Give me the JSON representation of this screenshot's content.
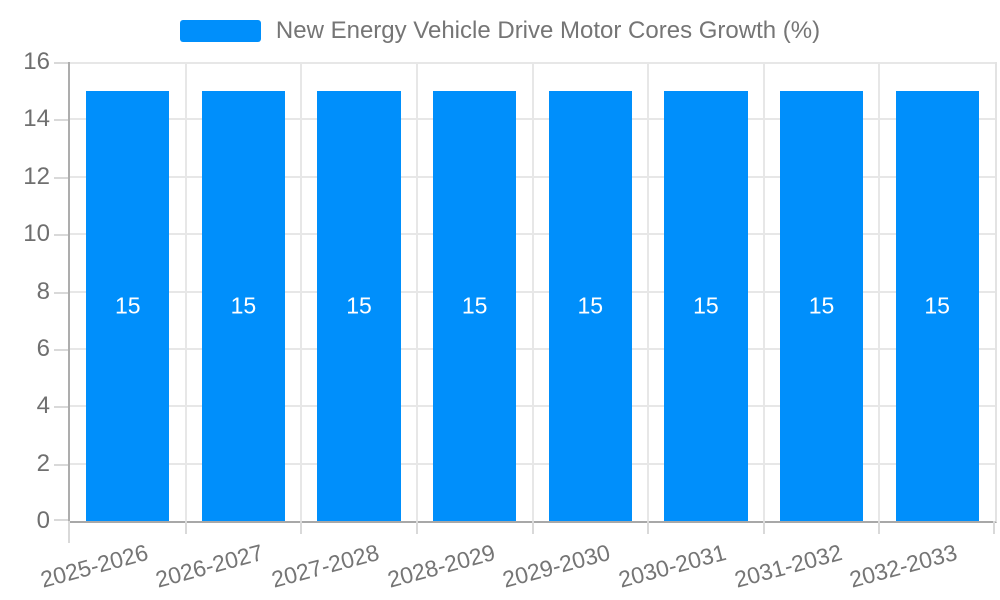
{
  "chart_data": {
    "type": "bar",
    "title": "New Energy Vehicle Drive Motor Cores Growth (%)",
    "legend": {
      "position": "top",
      "entries": [
        "New Energy Vehicle Drive Motor Cores Growth (%)"
      ]
    },
    "categories": [
      "2025-2026",
      "2026-2027",
      "2027-2028",
      "2028-2029",
      "2029-2030",
      "2030-2031",
      "2031-2032",
      "2032-2033"
    ],
    "values": [
      15,
      15,
      15,
      15,
      15,
      15,
      15,
      15
    ],
    "bar_value_labels": [
      "15",
      "15",
      "15",
      "15",
      "15",
      "15",
      "15",
      "15"
    ],
    "ylim": [
      0,
      16
    ],
    "yticks": [
      0,
      2,
      4,
      6,
      8,
      10,
      12,
      14,
      16
    ],
    "x_label_rotation_deg": -15,
    "grid": true,
    "bar_width_fraction": 0.72,
    "colors": {
      "bar": "#008FFB",
      "value_label": "#FFFFFF",
      "y_axis_text": "#6F6F6F",
      "x_axis_text": "#757575",
      "legend_text": "#757575",
      "gridline": "#E7E7E7",
      "axis_line": "#ADADAD",
      "tick": "#D9D9D9"
    }
  }
}
